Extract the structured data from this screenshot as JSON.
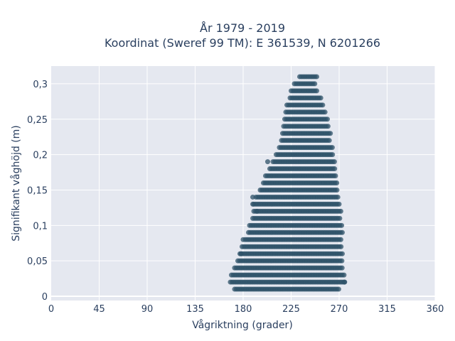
{
  "chart_data": {
    "type": "scatter",
    "title_line1": "År 1979 - 2019",
    "title_line2": "Koordinat (Sweref 99 TM): E 361539, N 6201266",
    "xlabel": "Vågriktning (grader)",
    "ylabel": "Signifikant våghöjd (m)",
    "xlim": [
      0,
      360
    ],
    "ylim": [
      -0.006,
      0.325
    ],
    "xticks": [
      0,
      45,
      90,
      135,
      180,
      225,
      270,
      315,
      360
    ],
    "xtick_labels": [
      "0",
      "45",
      "90",
      "135",
      "180",
      "225",
      "270",
      "315",
      "360"
    ],
    "yticks": [
      0,
      0.05,
      0.1,
      0.15,
      0.2,
      0.25,
      0.3
    ],
    "ytick_labels": [
      "0",
      "0,05",
      "0,1",
      "0,15",
      "0,2",
      "0,25",
      "0,3"
    ],
    "grid": true,
    "marker_color": "#2e5268",
    "plot_bg": "#e5e8f0",
    "bands": [
      {
        "y": 0.01,
        "x_min": 172,
        "x_max": 270
      },
      {
        "y": 0.02,
        "x_min": 168,
        "x_max": 276
      },
      {
        "y": 0.03,
        "x_min": 169,
        "x_max": 275
      },
      {
        "y": 0.04,
        "x_min": 172,
        "x_max": 274
      },
      {
        "y": 0.05,
        "x_min": 175,
        "x_max": 274
      },
      {
        "y": 0.06,
        "x_min": 177,
        "x_max": 274
      },
      {
        "y": 0.07,
        "x_min": 179,
        "x_max": 273
      },
      {
        "y": 0.08,
        "x_min": 182,
        "x_max": 273
      },
      {
        "y": 0.09,
        "x_min": 185,
        "x_max": 273
      },
      {
        "y": 0.1,
        "x_min": 186,
        "x_max": 273
      },
      {
        "y": 0.11,
        "x_min": 189,
        "x_max": 272
      },
      {
        "y": 0.12,
        "x_min": 190,
        "x_max": 272
      },
      {
        "y": 0.13,
        "x_min": 190,
        "x_max": 271
      },
      {
        "y": 0.14,
        "x_min": 192,
        "x_max": 270
      },
      {
        "y": 0.15,
        "x_min": 196,
        "x_max": 269
      },
      {
        "y": 0.16,
        "x_min": 199,
        "x_max": 268
      },
      {
        "y": 0.17,
        "x_min": 201,
        "x_max": 267
      },
      {
        "y": 0.18,
        "x_min": 205,
        "x_max": 267
      },
      {
        "y": 0.19,
        "x_min": 208,
        "x_max": 266
      },
      {
        "y": 0.2,
        "x_min": 211,
        "x_max": 265
      },
      {
        "y": 0.21,
        "x_min": 214,
        "x_max": 264
      },
      {
        "y": 0.22,
        "x_min": 216,
        "x_max": 262
      },
      {
        "y": 0.23,
        "x_min": 217,
        "x_max": 262
      },
      {
        "y": 0.24,
        "x_min": 218,
        "x_max": 261
      },
      {
        "y": 0.25,
        "x_min": 219,
        "x_max": 259
      },
      {
        "y": 0.26,
        "x_min": 220,
        "x_max": 257
      },
      {
        "y": 0.27,
        "x_min": 221,
        "x_max": 256
      },
      {
        "y": 0.28,
        "x_min": 224,
        "x_max": 253
      },
      {
        "y": 0.29,
        "x_min": 225,
        "x_max": 249
      },
      {
        "y": 0.3,
        "x_min": 228,
        "x_max": 248
      },
      {
        "y": 0.31,
        "x_min": 233,
        "x_max": 250
      }
    ],
    "outliers": [
      {
        "x": 178,
        "y": 0.06
      },
      {
        "x": 180,
        "y": 0.08
      },
      {
        "x": 189,
        "y": 0.13
      },
      {
        "x": 189,
        "y": 0.14
      },
      {
        "x": 193,
        "y": 0.12
      },
      {
        "x": 203,
        "y": 0.19
      },
      {
        "x": 275,
        "y": 0.02
      }
    ]
  }
}
